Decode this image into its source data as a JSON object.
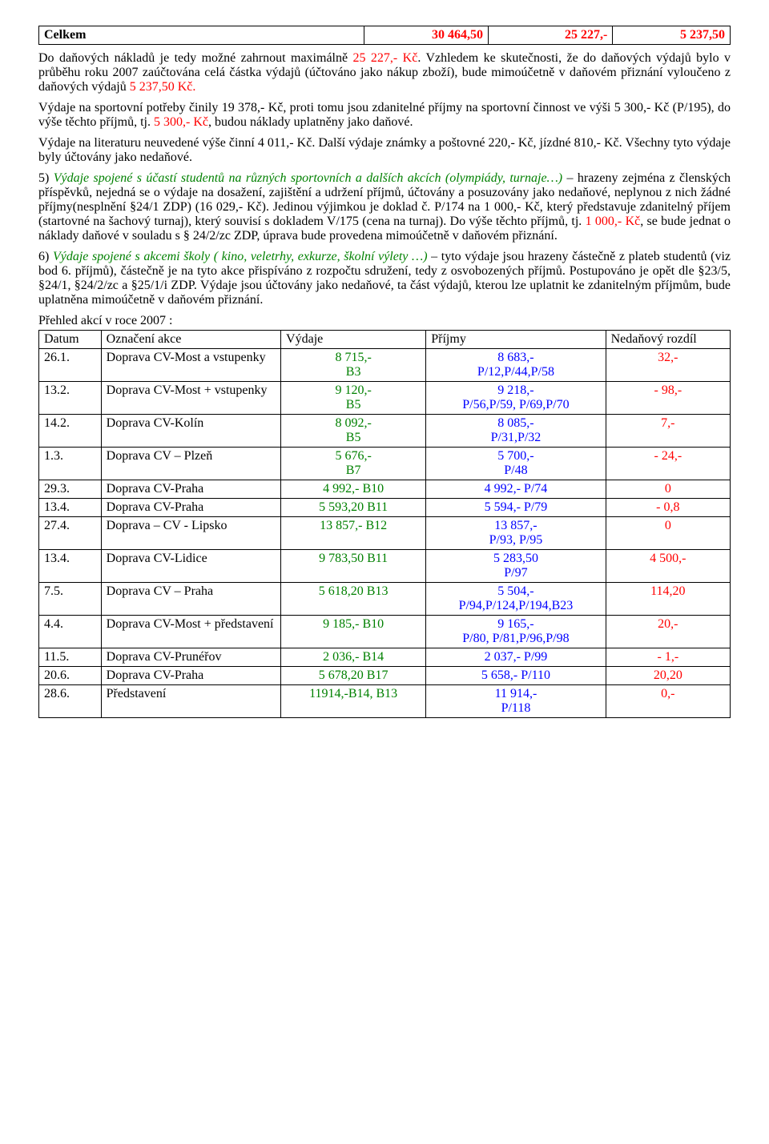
{
  "summary": {
    "label": "Celkem",
    "col1": "30 464,50",
    "col2": "25 227,-",
    "col3": "5 237,50"
  },
  "p1_a": "Do daňových nákladů je tedy možné zahrnout maximálně ",
  "p1_b": "25 227,- Kč",
  "p1_c": ". Vzhledem ke skutečnosti, že do daňových výdajů bylo v průběhu roku 2007 zaúčtována celá částka výdajů (účtováno jako nákup zboží), bude mimoúčetně v daňovém přiznání vyloučeno z daňových výdajů ",
  "p1_d": "5 237,50 Kč.",
  "p2_a": "Výdaje na sportovní potřeby činily 19 378,- Kč, proti tomu jsou zdanitelné příjmy na sportovní činnost ve výši 5 300,- Kč (P/195), do výše těchto příjmů, tj. ",
  "p2_b": "5 300,- Kč",
  "p2_c": ", budou náklady uplatněny jako daňové.",
  "p3": "Výdaje na literaturu neuvedené výše činní 4 011,- Kč. Další výdaje známky a poštovné 220,- Kč, jízdné 810,- Kč. Všechny tyto výdaje byly účtovány jako nedaňové.",
  "item5_num": "5) ",
  "item5_it": "Výdaje spojené s účastí studentů na různých sportovních a dalších akcích (olympiády, turnaje…)",
  "item5_rest_a": " – hrazeny zejména z členských příspěvků, nejedná se o výdaje na dosažení, zajištění a udržení příjmů, účtovány a posuzovány jako nedaňové, neplynou z nich žádné příjmy(nesplnění §24/1 ZDP) (16 029,- Kč). Jedinou výjimkou je doklad č. P/174 na 1 000,- Kč, který představuje zdanitelný příjem (startovné na šachový turnaj), který souvisí s dokladem V/175 (cena na turnaj). Do výše těchto příjmů, tj. ",
  "item5_red": "1 000,- Kč",
  "item5_rest_b": ", se bude jednat o náklady daňové v souladu s § 24/2/zc ZDP, úprava bude provedena mimoúčetně v daňovém přiznání.",
  "item6_num": "6) ",
  "item6_it": "Výdaje spojené s akcemi školy ( kino, veletrhy, exkurze, školní výlety …)",
  "item6_rest": " – tyto výdaje jsou hrazeny částečně z plateb studentů (viz bod 6. příjmů), částečně je na tyto akce přispíváno z rozpočtu sdružení, tedy z osvobozených příjmů. Postupováno je opět dle §23/5, §24/1, §24/2/zc a §25/1/i ZDP. Výdaje jsou účtovány jako nedaňové, ta část výdajů, kterou lze uplatnit ke zdanitelným příjmům, bude uplatněna mimoúčetně v daňovém přiznání.",
  "overview_label": "Přehled akcí v roce 2007 :",
  "table": {
    "headers": [
      "Datum",
      "Označení akce",
      "Výdaje",
      "Příjmy",
      "Nedaňový rozdíl"
    ],
    "rows": [
      {
        "d": "26.1.",
        "a": "Doprava CV-Most a vstupenky",
        "v": "8 715,-\nB3",
        "p": "8 683,-\nP/12,P/44,P/58",
        "n": "32,-",
        "nc": "red"
      },
      {
        "d": "13.2.",
        "a": "Doprava CV-Most + vstupenky",
        "v": "9 120,-\nB5",
        "p": "9 218,-\nP/56,P/59, P/69,P/70",
        "n": "- 98,-",
        "nc": "red"
      },
      {
        "d": "14.2.",
        "a": "Doprava CV-Kolín",
        "v": "8 092,-\nB5",
        "p": "8 085,-\nP/31,P/32",
        "n": "7,-",
        "nc": "red"
      },
      {
        "d": "1.3.",
        "a": "Doprava CV – Plzeň",
        "v": "5 676,-\nB7",
        "p": "5 700,-\nP/48",
        "n": "- 24,-",
        "nc": "red"
      },
      {
        "d": "29.3.",
        "a": "Doprava CV-Praha",
        "v": "4 992,- B10",
        "p": "4 992,- P/74",
        "n": "0",
        "nc": "red"
      },
      {
        "d": "13.4.",
        "a": "Doprava CV-Praha",
        "v": "5 593,20 B11",
        "p": "5 594,- P/79",
        "n": "- 0,8",
        "nc": "red"
      },
      {
        "d": "27.4.",
        "a": "Doprava – CV - Lipsko",
        "v": "13 857,-  B12",
        "p": "13 857,-\nP/93, P/95",
        "n": "0",
        "nc": "red"
      },
      {
        "d": "13.4.",
        "a": "Doprava CV-Lidice",
        "v": "9 783,50 B11",
        "p": "5 283,50\nP/97",
        "n": "4 500,-",
        "nc": "red"
      },
      {
        "d": "7.5.",
        "a": "Doprava CV – Praha",
        "v": "5 618,20   B13",
        "p": "5 504,-\nP/94,P/124,P/194,B23",
        "n": "114,20",
        "nc": "red"
      },
      {
        "d": "4.4.",
        "a": "Doprava CV-Most + představení",
        "v": "9 185,- B10",
        "p": "9 165,-\nP/80, P/81,P/96,P/98",
        "n": "20,-",
        "nc": "red"
      },
      {
        "d": "11.5.",
        "a": "Doprava CV-Prunéřov",
        "v": "2 036,- B14",
        "p": "2 037,- P/99",
        "n": "- 1,-",
        "nc": "red"
      },
      {
        "d": "20.6.",
        "a": "Doprava CV-Praha",
        "v": "5 678,20 B17",
        "p": "5 658,- P/110",
        "n": "20,20",
        "nc": "red"
      },
      {
        "d": "28.6.",
        "a": "Představení",
        "v": "11914,-B14, B13",
        "p": "11 914,-\nP/118",
        "n": "0,-",
        "nc": "red"
      }
    ]
  }
}
